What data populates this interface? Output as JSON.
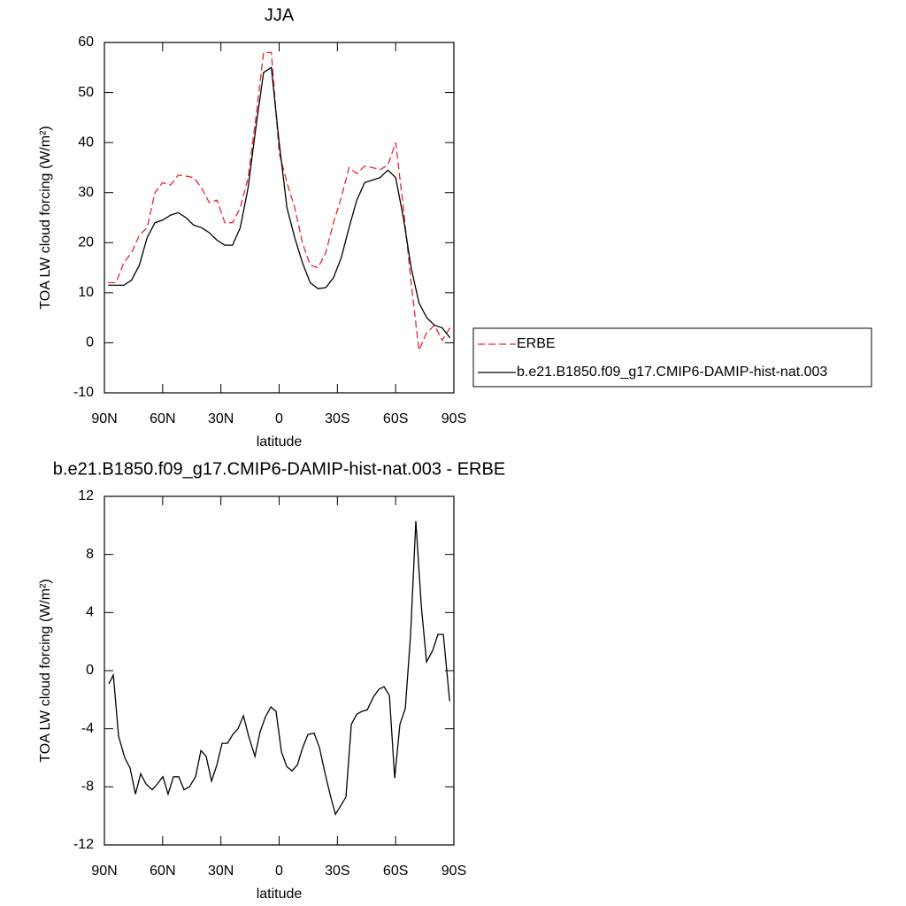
{
  "chart_data": [
    {
      "type": "line",
      "title": "JJA",
      "xlabel": "latitude",
      "ylabel": "TOA LW cloud forcing (W/m²)",
      "x": [
        88,
        84,
        80,
        76,
        72,
        68,
        64,
        60,
        56,
        52,
        48,
        44,
        40,
        36,
        32,
        28,
        24,
        20,
        16,
        12,
        8,
        4,
        0,
        -4,
        -8,
        -12,
        -16,
        -20,
        -24,
        -28,
        -32,
        -36,
        -40,
        -44,
        -48,
        -52,
        -56,
        -60,
        -64,
        -68,
        -72,
        -76,
        -80,
        -84,
        -88
      ],
      "series": [
        {
          "name": "ERBE",
          "color": "#e8262c",
          "line_style": "dashed",
          "values": [
            12,
            12,
            16,
            18,
            21.5,
            23,
            30,
            32,
            31.5,
            33.5,
            33.3,
            33,
            31,
            28,
            28.5,
            24,
            24,
            27,
            33,
            45,
            58,
            58,
            38,
            32,
            27,
            20,
            15.5,
            15,
            18,
            24,
            29,
            35,
            33.8,
            35.3,
            35,
            34.6,
            35.5,
            40,
            27,
            12,
            -1.5,
            2,
            3.5,
            0.5,
            3
          ]
        },
        {
          "name": "b.e21.B1850.f09_g17.CMIP6-DAMIP-hist-nat.003",
          "color": "#000000",
          "line_style": "solid",
          "values": [
            11.5,
            11.5,
            11.5,
            12.5,
            15.5,
            21,
            24,
            24.5,
            25.5,
            26,
            25,
            23.5,
            23,
            22,
            20.5,
            19.5,
            19.5,
            23,
            31,
            43,
            54,
            55,
            40,
            27,
            21,
            16,
            12,
            10.8,
            11,
            13,
            17,
            23,
            28.5,
            32,
            32.5,
            33,
            34.5,
            33,
            25,
            15,
            8,
            5,
            3.5,
            3,
            1
          ]
        }
      ],
      "xlim": [
        90,
        -90
      ],
      "xticks": [
        {
          "value": 90,
          "label": "90N"
        },
        {
          "value": 60,
          "label": "60N"
        },
        {
          "value": 30,
          "label": "30N"
        },
        0,
        {
          "value": -30,
          "label": "30S"
        },
        {
          "value": -60,
          "label": "60S"
        },
        {
          "value": -90,
          "label": "90S"
        }
      ],
      "ylim": [
        -10,
        60
      ],
      "yticks": [
        -10,
        0,
        10,
        20,
        30,
        40,
        50,
        60
      ],
      "grid": false,
      "legend": "right"
    },
    {
      "type": "line",
      "title": "b.e21.B1850.f09_g17.CMIP6-DAMIP-hist-nat.003 - ERBE",
      "xlabel": "latitude",
      "ylabel": "TOA LW cloud forcing (W/m²)",
      "x": [
        87.7,
        85.4,
        82.7,
        79.5,
        76.8,
        74,
        71.3,
        68.6,
        65.4,
        62.7,
        59.9,
        57.2,
        54.4,
        51.7,
        49,
        46.2,
        43,
        40.3,
        37.6,
        34.8,
        32.1,
        29.4,
        26.6,
        23.9,
        21.2,
        18.4,
        15.7,
        12.5,
        9.8,
        7.1,
        4.3,
        1.6,
        -1.2,
        -3.9,
        -6.6,
        -9.4,
        -12.1,
        -14.8,
        -18,
        -20.8,
        -23.5,
        -26.2,
        -29,
        -31.7,
        -34.4,
        -37.2,
        -39.9,
        -42.6,
        -45.4,
        -48.6,
        -51.3,
        -54,
        -56.8,
        -59.5,
        -62.2,
        -65,
        -67.7,
        -70.4,
        -73.2,
        -75.9,
        -79.1,
        -81.8,
        -84.6,
        -87.8
      ],
      "series": [
        {
          "color": "#000000",
          "line_style": "solid",
          "values": [
            -0.9,
            -0.3,
            -4.5,
            -6,
            -6.7,
            -8.5,
            -7.1,
            -7.8,
            -8.2,
            -7.8,
            -7.3,
            -8.5,
            -7.3,
            -7.3,
            -8.2,
            -8,
            -7.3,
            -5.5,
            -5.9,
            -7.6,
            -6.5,
            -5,
            -5,
            -4.4,
            -4,
            -3.1,
            -4.5,
            -5.9,
            -4.2,
            -3.2,
            -2.5,
            -2.8,
            -5.6,
            -6.6,
            -6.9,
            -6.5,
            -5.3,
            -4.4,
            -4.3,
            -5.3,
            -7,
            -8.5,
            -9.9,
            -9.3,
            -8.7,
            -3.7,
            -3,
            -2.8,
            -2.7,
            -1.8,
            -1.3,
            -1.1,
            -1.7,
            -7.4,
            -3.7,
            -2.6,
            2.5,
            10.3,
            4.5,
            0.6,
            1.4,
            2.5,
            2.5,
            -2.1
          ]
        }
      ],
      "xlim": [
        90,
        -90
      ],
      "xticks": [
        {
          "value": 90,
          "label": "90N"
        },
        {
          "value": 60,
          "label": "60N"
        },
        {
          "value": 30,
          "label": "30N"
        },
        0,
        {
          "value": -30,
          "label": "30S"
        },
        {
          "value": -60,
          "label": "60S"
        },
        {
          "value": -90,
          "label": "90S"
        }
      ],
      "ylim": [
        -12,
        12
      ],
      "yticks": [
        -12,
        -8,
        -4,
        0,
        4,
        8,
        12
      ],
      "grid": false
    }
  ]
}
